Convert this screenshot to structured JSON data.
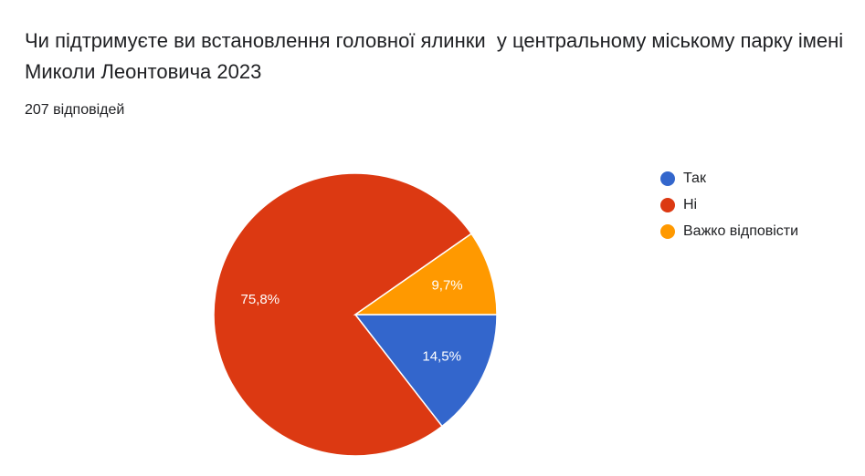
{
  "chart_data": {
    "type": "pie",
    "title": "Чи підтримуєте ви встановлення головної ялинки  у центральному міському парку імені Миколи Леонтовича 2023",
    "subtitle": "207 відповідей",
    "categories": [
      "Так",
      "Ні",
      "Важко відповісти"
    ],
    "values": [
      14.5,
      75.8,
      9.7
    ],
    "value_labels": [
      "14,5%",
      "75,8%",
      "9,7%"
    ],
    "colors": [
      "#3366cc",
      "#dc3912",
      "#ff9900"
    ],
    "legend": "right"
  }
}
